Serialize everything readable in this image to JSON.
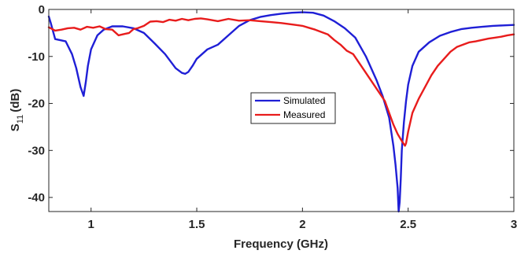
{
  "chart_data": {
    "type": "line",
    "xlabel": "Frequency (GHz)",
    "ylabel_main": "S",
    "ylabel_sub": "11",
    "ylabel_unit": "(dB)",
    "xlim": [
      0.8,
      3.0
    ],
    "ylim": [
      -43,
      0
    ],
    "xticks": [
      1,
      1.5,
      2,
      2.5,
      3
    ],
    "xtick_labels": [
      "1",
      "1.5",
      "2",
      "2.5",
      "3"
    ],
    "yticks": [
      0,
      -10,
      -20,
      -30,
      -40
    ],
    "ytick_labels": [
      "0",
      "-10",
      "-20",
      "-30",
      "-40"
    ],
    "grid": false,
    "legend_position": "center",
    "series": [
      {
        "name": "Simulated",
        "color": "#1f1fd6",
        "x": [
          0.8,
          0.81,
          0.83,
          0.85,
          0.88,
          0.91,
          0.93,
          0.95,
          0.965,
          0.975,
          0.985,
          1.0,
          1.03,
          1.06,
          1.1,
          1.15,
          1.2,
          1.25,
          1.3,
          1.35,
          1.4,
          1.43,
          1.445,
          1.46,
          1.48,
          1.5,
          1.55,
          1.6,
          1.65,
          1.7,
          1.75,
          1.8,
          1.85,
          1.9,
          1.95,
          2.0,
          2.05,
          2.1,
          2.15,
          2.2,
          2.25,
          2.3,
          2.35,
          2.38,
          2.41,
          2.43,
          2.44,
          2.45,
          2.455,
          2.46,
          2.465,
          2.47,
          2.48,
          2.49,
          2.5,
          2.52,
          2.55,
          2.6,
          2.65,
          2.7,
          2.75,
          2.8,
          2.85,
          2.9,
          2.95,
          3.0
        ],
        "y": [
          -1.5,
          -3,
          -6.3,
          -6.5,
          -6.8,
          -9.5,
          -12.5,
          -16.5,
          -18.4,
          -15.5,
          -12,
          -8.5,
          -5.5,
          -4.3,
          -3.6,
          -3.6,
          -4,
          -5,
          -7.2,
          -9.5,
          -12.5,
          -13.5,
          -13.7,
          -13.3,
          -12,
          -10.5,
          -8.5,
          -7.5,
          -5.5,
          -3.5,
          -2.3,
          -1.6,
          -1.2,
          -0.9,
          -0.7,
          -0.6,
          -0.7,
          -1.3,
          -2.5,
          -4,
          -6,
          -10,
          -15,
          -18.5,
          -23,
          -29,
          -33,
          -38,
          -43,
          -41,
          -36,
          -30,
          -24,
          -19.5,
          -16,
          -12,
          -9,
          -7,
          -5.6,
          -4.8,
          -4.2,
          -3.9,
          -3.7,
          -3.5,
          -3.4,
          -3.3
        ]
      },
      {
        "name": "Measured",
        "color": "#e81c1c",
        "x": [
          0.8,
          0.83,
          0.86,
          0.89,
          0.92,
          0.95,
          0.98,
          1.01,
          1.04,
          1.07,
          1.1,
          1.13,
          1.16,
          1.18,
          1.2,
          1.22,
          1.25,
          1.28,
          1.31,
          1.34,
          1.37,
          1.4,
          1.43,
          1.46,
          1.49,
          1.52,
          1.55,
          1.6,
          1.65,
          1.7,
          1.75,
          1.8,
          1.85,
          1.9,
          1.95,
          2.0,
          2.03,
          2.06,
          2.09,
          2.12,
          2.15,
          2.18,
          2.21,
          2.24,
          2.27,
          2.3,
          2.33,
          2.36,
          2.39,
          2.41,
          2.43,
          2.45,
          2.47,
          2.485,
          2.49,
          2.5,
          2.52,
          2.55,
          2.58,
          2.61,
          2.64,
          2.67,
          2.7,
          2.73,
          2.76,
          2.79,
          2.82,
          2.85,
          2.88,
          2.91,
          2.94,
          2.97,
          3.0
        ],
        "y": [
          -3.8,
          -4.5,
          -4.3,
          -4.0,
          -3.9,
          -4.3,
          -3.7,
          -3.9,
          -3.6,
          -4.2,
          -4.3,
          -5.5,
          -5.2,
          -5.0,
          -4.2,
          -4.0,
          -3.5,
          -2.6,
          -2.5,
          -2.7,
          -2.2,
          -2.4,
          -2.0,
          -2.3,
          -2.0,
          -1.9,
          -2.1,
          -2.5,
          -2.0,
          -2.4,
          -2.3,
          -2.5,
          -2.7,
          -2.9,
          -3.2,
          -3.5,
          -3.9,
          -4.3,
          -4.8,
          -5.3,
          -6.5,
          -7.5,
          -8.8,
          -9.5,
          -11.5,
          -13.5,
          -15.5,
          -17.5,
          -19.5,
          -22,
          -24.5,
          -26.5,
          -28,
          -29,
          -28.5,
          -26,
          -22,
          -19,
          -16.5,
          -14,
          -12,
          -10.5,
          -9,
          -8,
          -7.5,
          -7,
          -6.8,
          -6.5,
          -6.2,
          -6.0,
          -5.8,
          -5.5,
          -5.3
        ]
      }
    ]
  }
}
